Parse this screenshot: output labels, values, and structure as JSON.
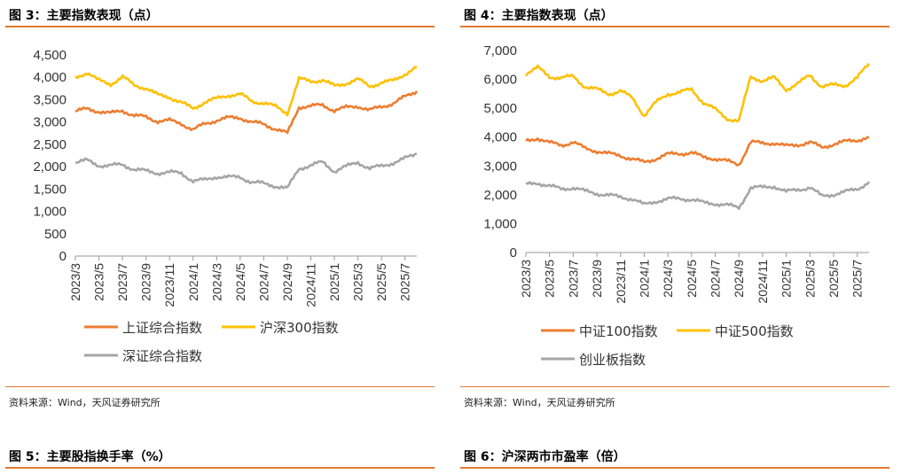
{
  "left": {
    "title": "图 3：主要指数表现（点）",
    "source": "资料来源：Wind，天风证券研究所"
  },
  "right": {
    "title": "图 4：主要指数表现（点）",
    "source": "资料来源：Wind，天风证券研究所"
  },
  "bottom": {
    "left_title": "图 5：主要股指换手率（%）",
    "right_title": "图 6：沪深两市市盈率（倍）"
  },
  "colors": {
    "orange": "#ED7D31",
    "gold": "#FFC000",
    "gray": "#A5A5A5",
    "rule": "#E07A2F"
  },
  "chart_data": [
    {
      "type": "line",
      "title": "图 3：主要指数表现（点）",
      "x_ticks": [
        "2023/3",
        "2023/5",
        "2023/7",
        "2023/9",
        "2023/11",
        "2024/1",
        "2024/3",
        "2024/5",
        "2024/7",
        "2024/9",
        "2024/11",
        "2025/1",
        "2025/3",
        "2025/5",
        "2025/7"
      ],
      "y_ticks": [
        "0",
        "500",
        "1,000",
        "1,500",
        "2,000",
        "2,500",
        "3,000",
        "3,500",
        "4,000",
        "4,500"
      ],
      "ylim": [
        0,
        4500
      ],
      "x_months": [
        "2023/3",
        "2023/4",
        "2023/5",
        "2023/6",
        "2023/7",
        "2023/8",
        "2023/9",
        "2023/10",
        "2023/11",
        "2023/12",
        "2024/1",
        "2024/2",
        "2024/3",
        "2024/4",
        "2024/5",
        "2024/6",
        "2024/7",
        "2024/8",
        "2024/9",
        "2024/10",
        "2024/11",
        "2024/12",
        "2025/1",
        "2025/2",
        "2025/3",
        "2025/4",
        "2025/5",
        "2025/6",
        "2025/7",
        "2025/8"
      ],
      "series": [
        {
          "name": "上证综合指数",
          "color": "#ED7D31",
          "values": [
            3240,
            3290,
            3240,
            3190,
            3260,
            3140,
            3110,
            3020,
            3030,
            2970,
            2820,
            2960,
            3040,
            3090,
            3100,
            2990,
            2950,
            2850,
            2740,
            3340,
            3350,
            3380,
            3260,
            3320,
            3360,
            3260,
            3340,
            3420,
            3560,
            3690
          ]
        },
        {
          "name": "沪深300指数",
          "color": "#FFC000",
          "values": [
            3990,
            4110,
            3920,
            3850,
            4010,
            3820,
            3760,
            3600,
            3560,
            3430,
            3300,
            3450,
            3520,
            3600,
            3620,
            3460,
            3430,
            3340,
            3200,
            3960,
            3910,
            3940,
            3800,
            3870,
            3950,
            3800,
            3880,
            3920,
            4080,
            4220
          ]
        },
        {
          "name": "深证综合指数",
          "color": "#A5A5A5",
          "values": [
            2090,
            2140,
            2030,
            2020,
            2050,
            1940,
            1900,
            1860,
            1870,
            1860,
            1680,
            1700,
            1780,
            1760,
            1770,
            1650,
            1620,
            1570,
            1510,
            1960,
            2030,
            2100,
            1900,
            2000,
            2100,
            1960,
            2010,
            2090,
            2180,
            2290
          ]
        }
      ],
      "legend": [
        "上证综合指数",
        "沪深300指数",
        "深证综合指数"
      ]
    },
    {
      "type": "line",
      "title": "图 4：主要指数表现（点）",
      "x_ticks": [
        "2023/3",
        "2023/5",
        "2023/7",
        "2023/9",
        "2023/11",
        "2024/1",
        "2024/3",
        "2024/5",
        "2024/7",
        "2024/9",
        "2024/11",
        "2025/1",
        "2025/3",
        "2025/5",
        "2025/7"
      ],
      "y_ticks": [
        "0",
        "1,000",
        "2,000",
        "3,000",
        "4,000",
        "5,000",
        "6,000",
        "7,000"
      ],
      "ylim": [
        0,
        7000
      ],
      "x_months": [
        "2023/3",
        "2023/4",
        "2023/5",
        "2023/6",
        "2023/7",
        "2023/8",
        "2023/9",
        "2023/10",
        "2023/11",
        "2023/12",
        "2024/1",
        "2024/2",
        "2024/3",
        "2024/4",
        "2024/5",
        "2024/6",
        "2024/7",
        "2024/8",
        "2024/9",
        "2024/10",
        "2024/11",
        "2024/12",
        "2025/1",
        "2025/2",
        "2025/3",
        "2025/4",
        "2025/5",
        "2025/6",
        "2025/7",
        "2025/8"
      ],
      "series": [
        {
          "name": "中证100指数",
          "color": "#ED7D31",
          "values": [
            3850,
            3970,
            3800,
            3720,
            3830,
            3600,
            3520,
            3420,
            3360,
            3240,
            3120,
            3260,
            3400,
            3430,
            3460,
            3300,
            3260,
            3160,
            3050,
            3830,
            3780,
            3800,
            3680,
            3740,
            3820,
            3640,
            3760,
            3840,
            3900,
            4000
          ]
        },
        {
          "name": "中证500指数",
          "color": "#FFC000",
          "values": [
            6200,
            6400,
            6100,
            6050,
            6100,
            5750,
            5650,
            5500,
            5600,
            5350,
            4750,
            5200,
            5500,
            5550,
            5650,
            5200,
            4950,
            4650,
            4550,
            6100,
            5950,
            6050,
            5650,
            5850,
            6150,
            5750,
            5800,
            5800,
            6050,
            6550
          ]
        },
        {
          "name": "创业板指数",
          "color": "#A5A5A5",
          "values": [
            2350,
            2420,
            2300,
            2200,
            2250,
            2120,
            2050,
            1980,
            1920,
            1860,
            1650,
            1780,
            1850,
            1870,
            1840,
            1720,
            1700,
            1640,
            1550,
            2250,
            2250,
            2300,
            2100,
            2180,
            2260,
            1950,
            2020,
            2100,
            2200,
            2450
          ]
        }
      ],
      "legend": [
        "中证100指数",
        "中证500指数",
        "创业板指数"
      ]
    }
  ]
}
